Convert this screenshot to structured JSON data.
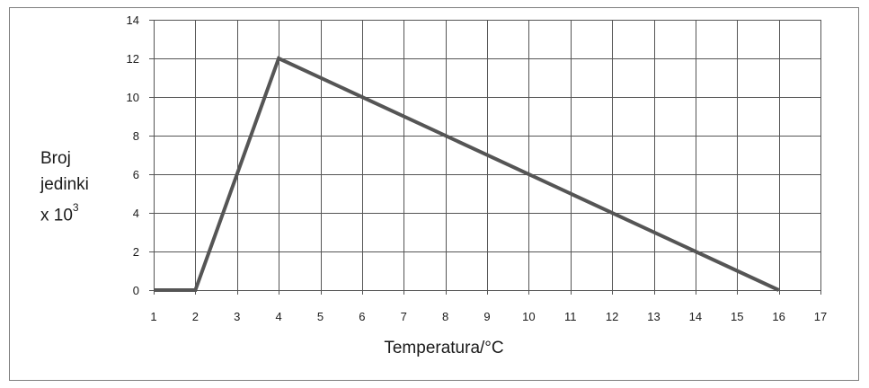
{
  "chart_data": {
    "type": "line",
    "xlabel": "Temperatura/°C",
    "ylabel_lines": [
      "Broj",
      "jedinki",
      "x 10"
    ],
    "ylabel_superscript": "3",
    "x_ticks": [
      1,
      2,
      3,
      4,
      5,
      6,
      7,
      8,
      9,
      10,
      11,
      12,
      13,
      14,
      15,
      16,
      17
    ],
    "y_ticks": [
      0,
      2,
      4,
      6,
      8,
      10,
      12,
      14
    ],
    "xlim": [
      1,
      17
    ],
    "ylim": [
      0,
      14
    ],
    "grid": true,
    "series": [
      {
        "x": [
          1,
          2,
          4,
          16
        ],
        "y": [
          0,
          0,
          12,
          0
        ]
      }
    ],
    "colors": {
      "line": "#555555",
      "grid": "#555555",
      "axis": "#7f7f7f"
    }
  }
}
